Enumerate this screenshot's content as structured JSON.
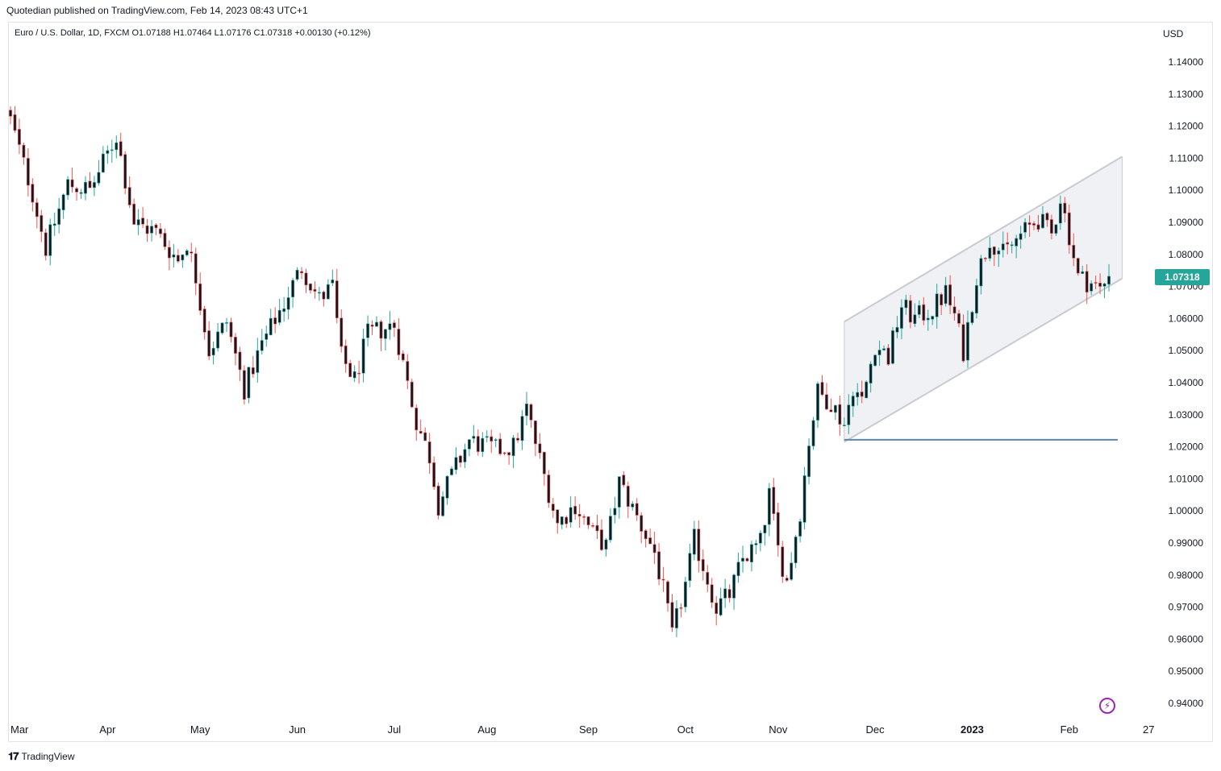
{
  "header": {
    "published": "Quotedian published on TradingView.com, Feb 14, 2023 08:43 UTC+1"
  },
  "legend": {
    "text": "Euro / U.S. Dollar, 1D, FXCM  O1.07188  H1.07464  L1.07176  C1.07318  +0.00130 (+0.12%)"
  },
  "currency": "USD",
  "last_price": "1.07318",
  "footer": {
    "brand": "TradingView",
    "logo_icon": "tradingview-logo-icon"
  },
  "colors": {
    "up": "#26a69a",
    "down": "#ef5350",
    "body": "#131722",
    "channel_fill": "#eceef3",
    "channel_line": "#c9cbd1",
    "support_line": "#5b84b1"
  },
  "chart_data": {
    "type": "candlestick",
    "ylim": [
      0.935,
      1.149
    ],
    "y_ticks": [
      "1.14000",
      "1.13000",
      "1.12000",
      "1.11000",
      "1.10000",
      "1.09000",
      "1.08000",
      "1.07000",
      "1.06000",
      "1.05000",
      "1.04000",
      "1.03000",
      "1.02000",
      "1.01000",
      "1.00000",
      "0.99000",
      "0.98000",
      "0.97000",
      "0.96000",
      "0.95000",
      "0.94000"
    ],
    "x_labels": [
      {
        "label": "Mar",
        "bold": false,
        "index": 0
      },
      {
        "label": "Apr",
        "bold": false,
        "index": 22
      },
      {
        "label": "May",
        "bold": false,
        "index": 43
      },
      {
        "label": "Jun",
        "bold": false,
        "index": 65
      },
      {
        "label": "Jul",
        "bold": false,
        "index": 87
      },
      {
        "label": "Aug",
        "bold": false,
        "index": 108
      },
      {
        "label": "Sep",
        "bold": false,
        "index": 131
      },
      {
        "label": "Oct",
        "bold": false,
        "index": 153
      },
      {
        "label": "Nov",
        "bold": false,
        "index": 174
      },
      {
        "label": "Dec",
        "bold": false,
        "index": 196
      },
      {
        "label": "2023",
        "bold": true,
        "index": 218
      },
      {
        "label": "Feb",
        "bold": false,
        "index": 240
      },
      {
        "label": "27",
        "bold": false,
        "index": 258
      }
    ],
    "channel": {
      "start_index": 189,
      "end_index": 252,
      "lower_start": 1.0215,
      "lower_end": 1.0725,
      "upper_start": 1.059,
      "upper_end": 1.1105
    },
    "support": {
      "start_index": 189,
      "end_index": 251,
      "value": 1.0222
    },
    "anchors": [
      {
        "i": 0,
        "p": 1.122
      },
      {
        "i": 5,
        "p": 1.099
      },
      {
        "i": 8,
        "p": 1.082
      },
      {
        "i": 13,
        "p": 1.102
      },
      {
        "i": 18,
        "p": 1.1
      },
      {
        "i": 24,
        "p": 1.117
      },
      {
        "i": 28,
        "p": 1.09
      },
      {
        "i": 33,
        "p": 1.087
      },
      {
        "i": 38,
        "p": 1.078
      },
      {
        "i": 40,
        "p": 1.084
      },
      {
        "i": 42,
        "p": 1.073
      },
      {
        "i": 45,
        "p": 1.05
      },
      {
        "i": 49,
        "p": 1.059
      },
      {
        "i": 53,
        "p": 1.038
      },
      {
        "i": 57,
        "p": 1.052
      },
      {
        "i": 62,
        "p": 1.065
      },
      {
        "i": 66,
        "p": 1.076
      },
      {
        "i": 70,
        "p": 1.066
      },
      {
        "i": 73,
        "p": 1.07
      },
      {
        "i": 75,
        "p": 1.048
      },
      {
        "i": 78,
        "p": 1.041
      },
      {
        "i": 81,
        "p": 1.055
      },
      {
        "i": 87,
        "p": 1.058
      },
      {
        "i": 92,
        "p": 1.028
      },
      {
        "i": 95,
        "p": 1.017
      },
      {
        "i": 97,
        "p": 1.002
      },
      {
        "i": 100,
        "p": 1.011
      },
      {
        "i": 104,
        "p": 1.022
      },
      {
        "i": 110,
        "p": 1.019
      },
      {
        "i": 114,
        "p": 1.02
      },
      {
        "i": 117,
        "p": 1.032
      },
      {
        "i": 120,
        "p": 1.016
      },
      {
        "i": 124,
        "p": 0.996
      },
      {
        "i": 128,
        "p": 1.002
      },
      {
        "i": 132,
        "p": 0.993
      },
      {
        "i": 135,
        "p": 0.989
      },
      {
        "i": 138,
        "p": 1.009
      },
      {
        "i": 142,
        "p": 0.998
      },
      {
        "i": 146,
        "p": 0.987
      },
      {
        "i": 148,
        "p": 0.975
      },
      {
        "i": 150,
        "p": 0.961
      },
      {
        "i": 153,
        "p": 0.977
      },
      {
        "i": 155,
        "p": 0.991
      },
      {
        "i": 157,
        "p": 0.983
      },
      {
        "i": 160,
        "p": 0.97
      },
      {
        "i": 163,
        "p": 0.974
      },
      {
        "i": 166,
        "p": 0.985
      },
      {
        "i": 170,
        "p": 0.99
      },
      {
        "i": 172,
        "p": 1.005
      },
      {
        "i": 174,
        "p": 0.988
      },
      {
        "i": 176,
        "p": 0.978
      },
      {
        "i": 179,
        "p": 1.0
      },
      {
        "i": 181,
        "p": 1.022
      },
      {
        "i": 183,
        "p": 1.037
      },
      {
        "i": 186,
        "p": 1.034
      },
      {
        "i": 189,
        "p": 1.027
      },
      {
        "i": 191,
        "p": 1.039
      },
      {
        "i": 193,
        "p": 1.034
      },
      {
        "i": 196,
        "p": 1.052
      },
      {
        "i": 199,
        "p": 1.048
      },
      {
        "i": 202,
        "p": 1.064
      },
      {
        "i": 205,
        "p": 1.06
      },
      {
        "i": 209,
        "p": 1.063
      },
      {
        "i": 212,
        "p": 1.068
      },
      {
        "i": 214,
        "p": 1.061
      },
      {
        "i": 216,
        "p": 1.05
      },
      {
        "i": 219,
        "p": 1.073
      },
      {
        "i": 222,
        "p": 1.085
      },
      {
        "i": 225,
        "p": 1.08
      },
      {
        "i": 229,
        "p": 1.086
      },
      {
        "i": 233,
        "p": 1.091
      },
      {
        "i": 236,
        "p": 1.086
      },
      {
        "i": 238,
        "p": 1.098
      },
      {
        "i": 240,
        "p": 1.086
      },
      {
        "i": 242,
        "p": 1.073
      },
      {
        "i": 245,
        "p": 1.071
      },
      {
        "i": 247,
        "p": 1.069
      },
      {
        "i": 249,
        "p": 1.0732
      }
    ],
    "candle_count": 250
  }
}
